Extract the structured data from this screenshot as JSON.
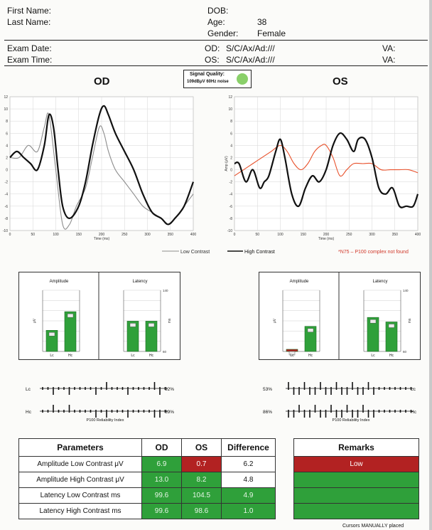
{
  "header": {
    "first_name_label": "First Name:",
    "last_name_label": "Last Name:",
    "dob_label": "DOB:",
    "age_label": "Age:",
    "age_value": "38",
    "gender_label": "Gender:",
    "gender_value": "Female",
    "exam_date_label": "Exam Date:",
    "exam_time_label": "Exam Time:",
    "od_label": "OD:",
    "od_value": "S/C/Ax/Ad:///",
    "os_label": "OS:",
    "os_value": "S/C/Ax/Ad:///",
    "va_od_label": "VA:",
    "va_os_label": "VA:"
  },
  "signal": {
    "label": "Signal Quality:",
    "detail": "109dBμV 60Hz noise",
    "color": "#8ad06a"
  },
  "titles": {
    "od": "OD",
    "os": "OS"
  },
  "legend": {
    "low": "Low Contrast",
    "high": "High Contrast",
    "warning": "*N75 – P100 complex not found"
  },
  "chart_data": [
    {
      "type": "line",
      "title": "OD",
      "xlabel": "Time (ms)",
      "ylabel": "",
      "xlim": [
        0,
        400
      ],
      "ylim": [
        -10,
        12
      ],
      "xticks": [
        0,
        50,
        100,
        150,
        200,
        250,
        300,
        350,
        400
      ],
      "yticks": [
        12,
        10,
        8,
        6,
        4,
        2,
        0,
        -2,
        -4,
        -6,
        -8,
        -10
      ],
      "series": [
        {
          "name": "Low Contrast",
          "color": "#8c8c8c",
          "x": [
            0,
            20,
            40,
            60,
            75,
            85,
            100,
            115,
            130,
            145,
            165,
            180,
            195,
            205,
            215,
            230,
            250,
            270,
            290,
            310,
            330,
            345,
            360,
            380,
            400
          ],
          "y": [
            2,
            2,
            4,
            3,
            7,
            9,
            0,
            -9,
            -9,
            -6,
            -3,
            2,
            7,
            6,
            3,
            0,
            -2,
            -4,
            -6,
            -7,
            -8,
            -9,
            -8,
            -6,
            -4
          ]
        },
        {
          "name": "High Contrast",
          "color": "#111111",
          "x": [
            0,
            15,
            30,
            45,
            60,
            75,
            85,
            95,
            105,
            115,
            130,
            150,
            165,
            180,
            195,
            205,
            215,
            230,
            250,
            270,
            290,
            310,
            330,
            345,
            360,
            380,
            400
          ],
          "y": [
            2,
            3,
            2,
            1,
            0,
            4,
            9,
            7,
            0,
            -6,
            -8,
            -6,
            -2,
            4,
            9,
            10.5,
            9,
            6,
            3,
            0,
            -4,
            -7,
            -8,
            -9,
            -8,
            -6,
            -2
          ]
        }
      ]
    },
    {
      "type": "line",
      "title": "OS",
      "xlabel": "Time (ms)",
      "ylabel": "Amp (μV)",
      "xlim": [
        0,
        400
      ],
      "ylim": [
        -10,
        12
      ],
      "xticks": [
        0,
        50,
        100,
        150,
        200,
        250,
        300,
        350,
        400
      ],
      "yticks": [
        12,
        10,
        8,
        6,
        4,
        2,
        0,
        -2,
        -4,
        -6,
        -8,
        -10
      ],
      "series": [
        {
          "name": "Low Contrast",
          "color": "#e8502a",
          "x": [
            0,
            20,
            40,
            60,
            80,
            100,
            115,
            130,
            145,
            160,
            175,
            190,
            200,
            215,
            230,
            245,
            260,
            280,
            300,
            320,
            340,
            360,
            380,
            400
          ],
          "y": [
            -1,
            0,
            1,
            2,
            3,
            4,
            3,
            1,
            0,
            1,
            3,
            4,
            4,
            2,
            -1,
            0,
            1,
            1,
            1,
            0,
            0,
            0,
            0,
            -0.5
          ]
        },
        {
          "name": "High Contrast",
          "color": "#111111",
          "x": [
            0,
            10,
            25,
            40,
            55,
            65,
            75,
            90,
            100,
            110,
            125,
            140,
            155,
            170,
            185,
            200,
            215,
            230,
            245,
            260,
            270,
            285,
            300,
            315,
            330,
            345,
            360,
            375,
            390,
            400
          ],
          "y": [
            1,
            1,
            -2,
            0,
            -3,
            -2,
            -1,
            3,
            5,
            2,
            -4,
            -6,
            -3,
            -1,
            -2,
            0,
            4,
            6,
            5,
            3,
            5,
            5,
            2,
            -3,
            -4,
            -3,
            -6,
            -6,
            -6,
            -4
          ]
        }
      ]
    },
    {
      "type": "bar",
      "title": "Amplitude",
      "categories": [
        "Lc",
        "Hc"
      ],
      "values": [
        6.9,
        13.0
      ],
      "colors": [
        "#2fa03a",
        "#2fa03a"
      ],
      "ylim": [
        0,
        20
      ],
      "ylabel": "μV"
    },
    {
      "type": "bar",
      "title": "Latency",
      "categories": [
        "Lc",
        "Hc"
      ],
      "values": [
        99.6,
        99.6
      ],
      "colors": [
        "#2fa03a",
        "#2fa03a"
      ],
      "ylim": [
        60,
        140
      ],
      "yticks": [
        140,
        60
      ],
      "ylabel": "ms"
    },
    {
      "type": "bar",
      "title": "Amplitude",
      "categories": [
        "Lc",
        "Hc"
      ],
      "values": [
        0.7,
        8.2
      ],
      "colors": [
        "#b22222",
        "#2fa03a"
      ],
      "ylim": [
        0,
        20
      ],
      "ylabel": "μV"
    },
    {
      "type": "bar",
      "title": "Latency",
      "categories": [
        "Lc",
        "Hc"
      ],
      "values": [
        104.5,
        98.6
      ],
      "colors": [
        "#2fa03a",
        "#2fa03a"
      ],
      "ylim": [
        60,
        140
      ],
      "yticks": [
        140,
        60
      ],
      "ylabel": "ms"
    }
  ],
  "reliability": {
    "title": "P100 Reliability Index",
    "od": {
      "lc_label": "Lc",
      "hc_label": "Hc",
      "lc_value": "92%",
      "hc_value": "89%"
    },
    "os": {
      "lc_label": "Lc",
      "hc_label": "Hc",
      "lc_value": "53%",
      "hc_value": "86%"
    }
  },
  "table": {
    "headers": [
      "Parameters",
      "OD",
      "OS",
      "Difference"
    ],
    "rows": [
      {
        "label": "Amplitude Low Contrast  μV",
        "od": "6.9",
        "os": "0.7",
        "diff": "6.2"
      },
      {
        "label": "Amplitude High Contrast  μV",
        "od": "13.0",
        "os": "8.2",
        "diff": "4.8"
      },
      {
        "label": "Latency Low Contrast  ms",
        "od": "99.6",
        "os": "104.5",
        "diff": "4.9"
      },
      {
        "label": "Latency High Contrast  ms",
        "od": "99.6",
        "os": "98.6",
        "diff": "1.0"
      }
    ]
  },
  "remarks": {
    "header": "Remarks",
    "rows": [
      "Low",
      "",
      "",
      ""
    ]
  },
  "footer": {
    "note": "Cursors MANUALLY placed"
  }
}
